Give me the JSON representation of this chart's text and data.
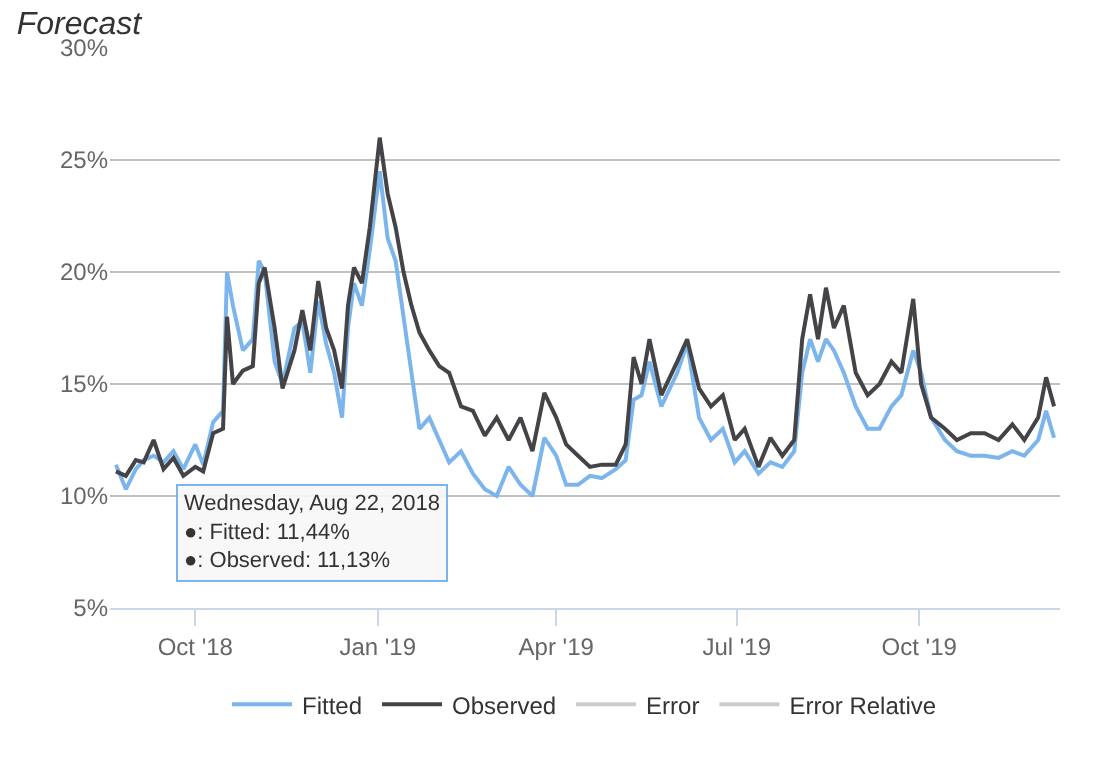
{
  "chart_data": {
    "type": "line",
    "title": "Forecast",
    "x": [
      "2018-08-22",
      "2018-08-27",
      "2018-09-01",
      "2018-09-05",
      "2018-09-10",
      "2018-09-15",
      "2018-09-20",
      "2018-09-25",
      "2018-10-01",
      "2018-10-05",
      "2018-10-10",
      "2018-10-15",
      "2018-10-17",
      "2018-10-20",
      "2018-10-25",
      "2018-10-30",
      "2018-11-02",
      "2018-11-05",
      "2018-11-10",
      "2018-11-14",
      "2018-11-20",
      "2018-11-24",
      "2018-11-28",
      "2018-12-02",
      "2018-12-06",
      "2018-12-10",
      "2018-12-14",
      "2018-12-17",
      "2018-12-20",
      "2018-12-24",
      "2018-12-28",
      "2019-01-02",
      "2019-01-06",
      "2019-01-10",
      "2019-01-14",
      "2019-01-18",
      "2019-01-22",
      "2019-01-27",
      "2019-02-01",
      "2019-02-06",
      "2019-02-12",
      "2019-02-18",
      "2019-02-24",
      "2019-03-02",
      "2019-03-08",
      "2019-03-14",
      "2019-03-20",
      "2019-03-26",
      "2019-04-01",
      "2019-04-06",
      "2019-04-12",
      "2019-04-18",
      "2019-04-24",
      "2019-05-01",
      "2019-05-06",
      "2019-05-10",
      "2019-05-14",
      "2019-05-18",
      "2019-05-24",
      "2019-06-01",
      "2019-06-06",
      "2019-06-12",
      "2019-06-18",
      "2019-06-24",
      "2019-06-30",
      "2019-07-05",
      "2019-07-12",
      "2019-07-18",
      "2019-07-24",
      "2019-07-30",
      "2019-08-03",
      "2019-08-07",
      "2019-08-11",
      "2019-08-15",
      "2019-08-19",
      "2019-08-24",
      "2019-08-30",
      "2019-09-05",
      "2019-09-11",
      "2019-09-17",
      "2019-09-22",
      "2019-09-28",
      "2019-10-02",
      "2019-10-07",
      "2019-10-14",
      "2019-10-20",
      "2019-10-27",
      "2019-11-03",
      "2019-11-10",
      "2019-11-17",
      "2019-11-23",
      "2019-11-30",
      "2019-12-04",
      "2019-12-08"
    ],
    "series": [
      {
        "name": "Fitted",
        "color": "#7cb5ec",
        "values": [
          11.4,
          10.3,
          11.2,
          11.6,
          11.8,
          11.5,
          12.0,
          11.2,
          12.3,
          11.4,
          13.3,
          13.8,
          20.0,
          18.5,
          16.5,
          17.0,
          20.5,
          20.0,
          16.0,
          15.0,
          17.5,
          17.8,
          15.5,
          18.7,
          16.8,
          15.5,
          13.5,
          17.5,
          19.5,
          18.5,
          21.0,
          24.5,
          21.5,
          20.5,
          18.0,
          15.5,
          13.0,
          13.5,
          12.5,
          11.5,
          12.0,
          11.0,
          10.3,
          10.0,
          11.3,
          10.5,
          10.0,
          12.6,
          11.8,
          10.5,
          10.5,
          10.9,
          10.8,
          11.2,
          11.6,
          14.3,
          14.5,
          16.0,
          14.0,
          15.5,
          16.8,
          13.5,
          12.5,
          13.0,
          11.5,
          12.0,
          11.0,
          11.5,
          11.3,
          12.0,
          15.5,
          17.0,
          16.0,
          17.0,
          16.5,
          15.5,
          14.0,
          13.0,
          13.0,
          14.0,
          14.5,
          16.5,
          15.5,
          13.5,
          12.5,
          12.0,
          11.8,
          11.8,
          11.7,
          12.0,
          11.8,
          12.5,
          13.8,
          12.6
        ]
      },
      {
        "name": "Observed",
        "color": "#434348",
        "values": [
          11.1,
          10.9,
          11.6,
          11.5,
          12.5,
          11.2,
          11.7,
          10.9,
          11.3,
          11.1,
          12.8,
          13.0,
          18.0,
          15.0,
          15.6,
          15.8,
          19.5,
          20.2,
          17.5,
          14.8,
          16.5,
          18.3,
          16.5,
          19.6,
          17.5,
          16.5,
          14.8,
          18.5,
          20.2,
          19.5,
          22.0,
          26.0,
          23.5,
          22.0,
          20.0,
          18.5,
          17.3,
          16.5,
          15.8,
          15.5,
          14.0,
          13.8,
          12.7,
          13.5,
          12.5,
          13.5,
          12.0,
          14.6,
          13.5,
          12.3,
          11.8,
          11.3,
          11.4,
          11.4,
          12.3,
          16.2,
          15.0,
          17.0,
          14.5,
          16.0,
          17.0,
          14.8,
          14.0,
          14.5,
          12.5,
          13.0,
          11.3,
          12.6,
          11.8,
          12.5,
          17.0,
          19.0,
          17.0,
          19.3,
          17.5,
          18.5,
          15.5,
          14.5,
          15.0,
          16.0,
          15.5,
          18.8,
          15.0,
          13.5,
          13.0,
          12.5,
          12.8,
          12.8,
          12.5,
          13.2,
          12.5,
          13.5,
          15.3,
          14.0
        ]
      },
      {
        "name": "Error",
        "color": "#cccccc",
        "values": [
          null,
          null,
          null,
          null,
          null,
          null,
          null,
          null,
          null,
          null,
          null,
          null,
          null,
          null,
          null,
          null,
          null,
          null,
          null,
          null,
          null,
          null,
          null,
          null,
          null,
          null,
          null,
          null,
          null,
          null,
          null,
          null,
          null,
          null,
          null,
          null,
          null,
          null,
          null,
          null,
          null,
          null,
          null,
          null,
          null,
          null,
          null,
          null,
          null,
          null,
          null,
          null,
          null,
          null,
          null,
          null,
          null,
          null,
          null,
          null,
          null,
          null,
          null,
          null,
          null,
          null,
          null,
          null,
          null,
          null,
          null,
          null,
          null,
          null,
          null,
          null,
          null,
          null,
          null,
          null,
          null,
          null,
          null,
          null,
          null,
          null,
          null,
          null,
          null,
          null,
          null,
          null,
          null,
          null
        ]
      },
      {
        "name": "Error Relative",
        "color": "#cccccc",
        "values": [
          null,
          null,
          null,
          null,
          null,
          null,
          null,
          null,
          null,
          null,
          null,
          null,
          null,
          null,
          null,
          null,
          null,
          null,
          null,
          null,
          null,
          null,
          null,
          null,
          null,
          null,
          null,
          null,
          null,
          null,
          null,
          null,
          null,
          null,
          null,
          null,
          null,
          null,
          null,
          null,
          null,
          null,
          null,
          null,
          null,
          null,
          null,
          null,
          null,
          null,
          null,
          null,
          null,
          null,
          null,
          null,
          null,
          null,
          null,
          null,
          null,
          null,
          null,
          null,
          null,
          null,
          null,
          null,
          null,
          null,
          null,
          null,
          null,
          null,
          null,
          null,
          null,
          null,
          null,
          null,
          null,
          null,
          null,
          null,
          null,
          null,
          null,
          null,
          null,
          null,
          null,
          null,
          null,
          null
        ]
      }
    ],
    "xlim": [
      "2018-08-19",
      "2019-12-11"
    ],
    "xticks": [
      {
        "value": "2018-10-01",
        "label": "Oct '18"
      },
      {
        "value": "2019-01-01",
        "label": "Jan '19"
      },
      {
        "value": "2019-04-01",
        "label": "Apr '19"
      },
      {
        "value": "2019-07-01",
        "label": "Jul '19"
      },
      {
        "value": "2019-10-01",
        "label": "Oct '19"
      }
    ],
    "ylim": [
      5,
      30
    ],
    "yticks": [
      {
        "value": 5,
        "label": "5%"
      },
      {
        "value": 10,
        "label": "10%"
      },
      {
        "value": 15,
        "label": "15%"
      },
      {
        "value": 20,
        "label": "20%"
      },
      {
        "value": 25,
        "label": "25%"
      },
      {
        "value": 30,
        "label": "30%"
      }
    ],
    "grid": "y",
    "legend": "bottom",
    "marker": "none",
    "line_style": "solid",
    "annotations": [
      "Wednesday, Aug 22, 2018\n●: Fitted: 11,44%\n●: Observed: 11,13%"
    ]
  }
}
